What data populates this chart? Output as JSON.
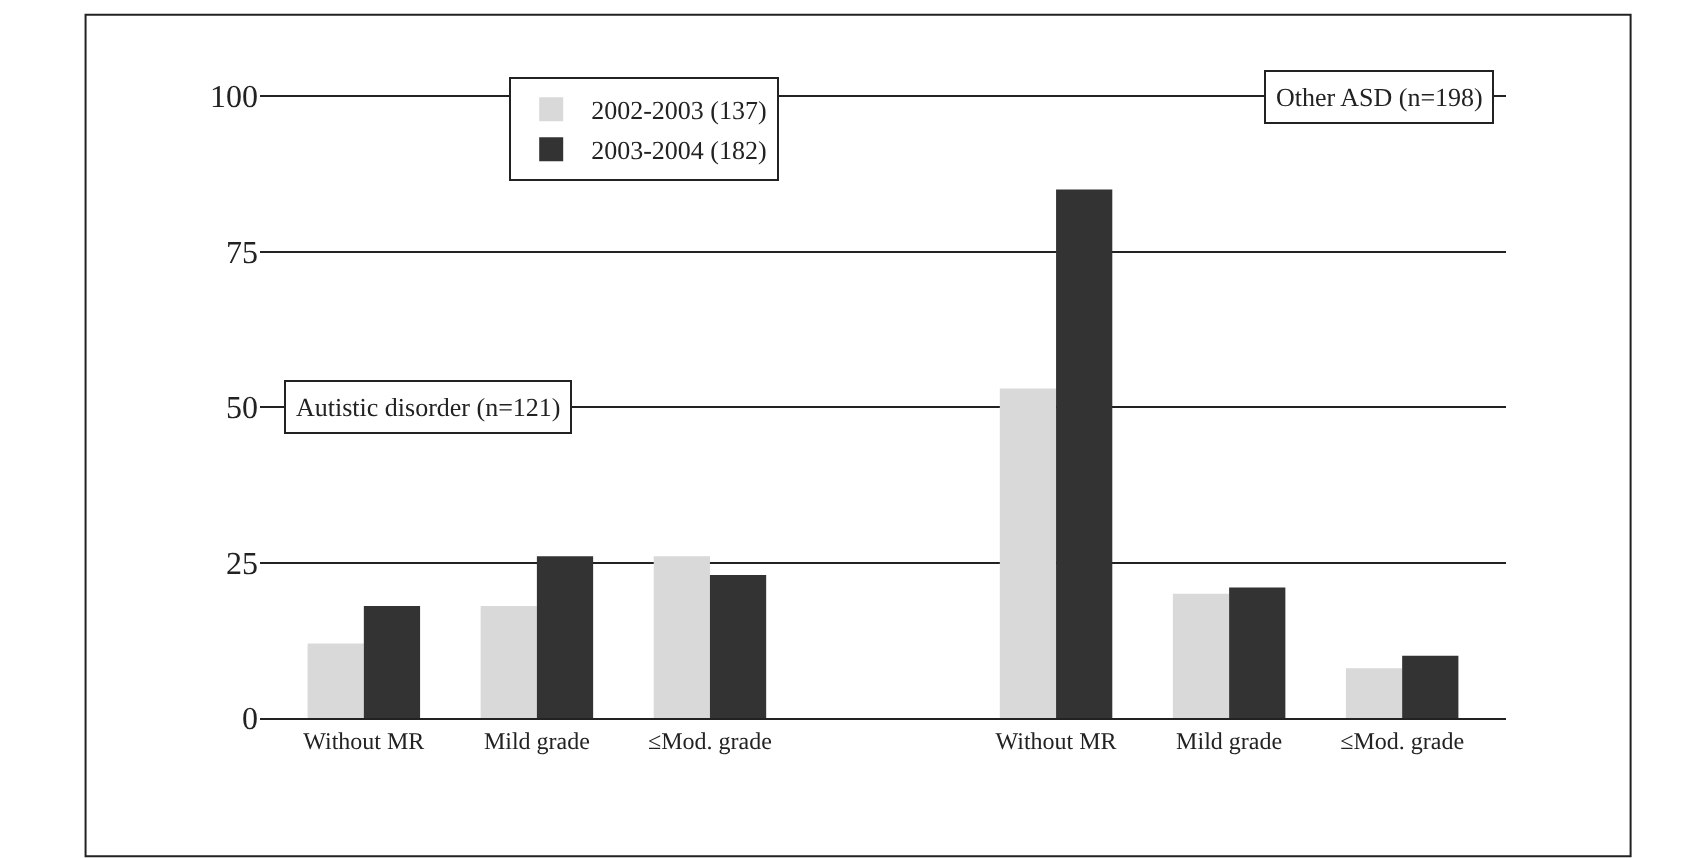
{
  "chart_data": {
    "type": "bar",
    "categories": [
      "Without MR",
      "Mild grade",
      "≤Mod. grade",
      null,
      "Without MR",
      "Mild grade",
      "≤Mod. grade"
    ],
    "series": [
      {
        "name": "2002-2003 (137)",
        "color": "#d9d9d9",
        "values": [
          12,
          18,
          26,
          null,
          53,
          20,
          8
        ]
      },
      {
        "name": "2003-2004 (182)",
        "color": "#333333",
        "values": [
          18,
          26,
          23,
          null,
          85,
          21,
          10
        ]
      }
    ],
    "annotations": [
      "Autistic disorder (n=121)",
      "Other ASD (n=198)"
    ],
    "ylim": [
      0,
      100
    ],
    "yticks": [
      0,
      25,
      50,
      75,
      100
    ],
    "grid": "y",
    "legend": "top left"
  }
}
